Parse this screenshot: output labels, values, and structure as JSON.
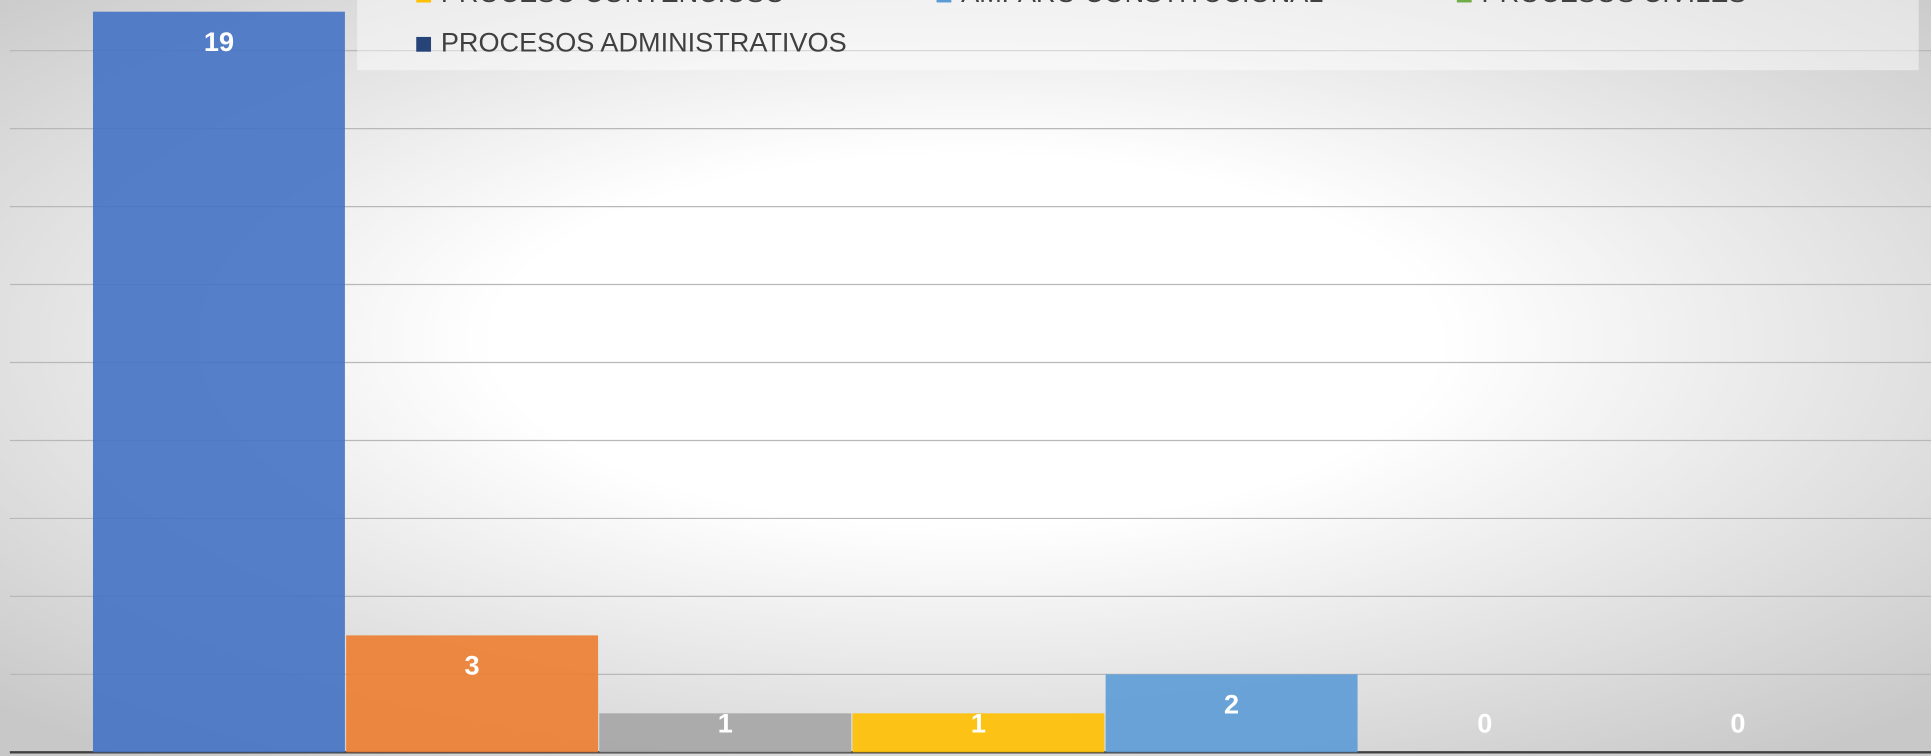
{
  "chart_data": {
    "type": "bar",
    "series": [
      {
        "color": "#4472c4",
        "values": [
          19
        ]
      },
      {
        "color": "#ed7d31",
        "values": [
          3
        ]
      },
      {
        "color": "#a5a5a5",
        "values": [
          1
        ]
      },
      {
        "name": "PROCESO CONTENCIOSO",
        "color": "#ffc000",
        "values": [
          1
        ]
      },
      {
        "name": "AMPARO CONSTITUCIONAL",
        "color": "#5b9bd5",
        "values": [
          2
        ]
      },
      {
        "name": "PROCESOS CIVILES",
        "color": "#70ad47",
        "values": [
          0
        ]
      },
      {
        "name": "PROCESOS ADMINISTRATIVOS",
        "color": "#264478",
        "values": [
          0
        ]
      }
    ],
    "ylim": [
      0,
      19.3
    ],
    "yticks": [
      0,
      2,
      4,
      6,
      8,
      10,
      12,
      14,
      16,
      18
    ],
    "grid": true,
    "legend": "top"
  }
}
